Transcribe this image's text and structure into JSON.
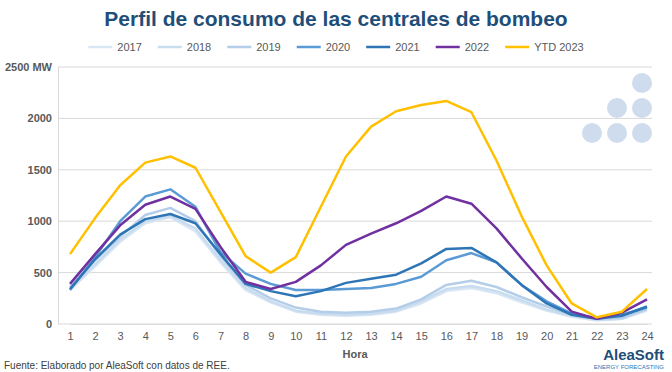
{
  "chart_data": {
    "type": "line",
    "title": "Perfil de consumo de las centrales de bombeo",
    "x_label": "Hora",
    "annotations": [
      "Fuente: Elaborado por AleaSoft con datos de REE.",
      "AleaSoft",
      "ENERGY FORECASTING"
    ],
    "categories": [
      "1",
      "2",
      "3",
      "4",
      "5",
      "6",
      "7",
      "8",
      "9",
      "10",
      "11",
      "12",
      "13",
      "14",
      "15",
      "16",
      "17",
      "18",
      "19",
      "20",
      "21",
      "22",
      "23",
      "24"
    ],
    "ylim": [
      0,
      2500
    ],
    "yticks": [
      0,
      500,
      1000,
      1500,
      2000,
      {
        "value": 2500,
        "label": "2500 MW"
      }
    ],
    "grid": true,
    "legend": "top",
    "series": [
      {
        "name": "2017",
        "color": "#d9e6f4",
        "values": [
          330,
          560,
          800,
          980,
          1040,
          900,
          600,
          330,
          210,
          120,
          90,
          80,
          90,
          120,
          200,
          320,
          350,
          300,
          210,
          130,
          70,
          35,
          50,
          130
        ]
      },
      {
        "name": "2018",
        "color": "#c8dcf0",
        "values": [
          340,
          580,
          820,
          1000,
          1050,
          930,
          620,
          350,
          220,
          130,
          100,
          90,
          100,
          130,
          220,
          340,
          370,
          320,
          230,
          140,
          80,
          40,
          50,
          140
        ]
      },
      {
        "name": "2019",
        "color": "#b4cde8",
        "values": [
          360,
          620,
          850,
          1060,
          1130,
          1000,
          660,
          380,
          250,
          160,
          120,
          110,
          120,
          150,
          240,
          380,
          420,
          360,
          260,
          170,
          90,
          50,
          60,
          150
        ]
      },
      {
        "name": "2020",
        "color": "#5b9bd5",
        "values": [
          330,
          650,
          1000,
          1240,
          1310,
          1140,
          700,
          490,
          390,
          330,
          330,
          340,
          350,
          390,
          460,
          620,
          690,
          600,
          380,
          220,
          100,
          55,
          90,
          160
        ]
      },
      {
        "name": "2021",
        "color": "#2e75b6",
        "values": [
          340,
          630,
          870,
          1020,
          1070,
          980,
          680,
          390,
          320,
          270,
          320,
          400,
          440,
          480,
          590,
          730,
          740,
          600,
          380,
          200,
          90,
          50,
          80,
          170
        ]
      },
      {
        "name": "2022",
        "color": "#7030a0",
        "values": [
          390,
          680,
          960,
          1160,
          1240,
          1120,
          750,
          410,
          340,
          410,
          570,
          770,
          880,
          980,
          1100,
          1240,
          1170,
          930,
          640,
          360,
          120,
          50,
          110,
          240
        ]
      },
      {
        "name": "YTD 2023",
        "color": "#ffc000",
        "values": [
          680,
          1030,
          1350,
          1570,
          1630,
          1520,
          1090,
          660,
          500,
          650,
          1140,
          1630,
          1920,
          2070,
          2130,
          2170,
          2060,
          1590,
          1050,
          570,
          200,
          65,
          120,
          340
        ]
      }
    ]
  }
}
